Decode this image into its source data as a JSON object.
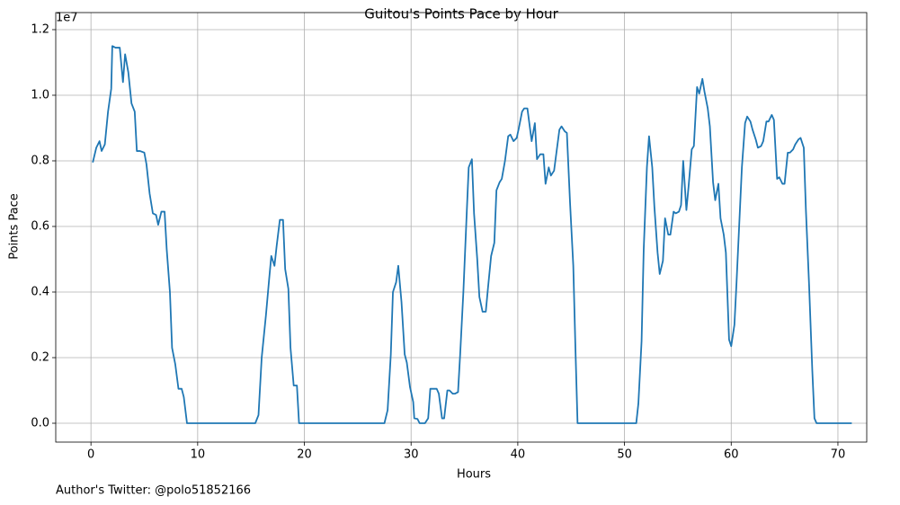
{
  "chart_data": {
    "type": "line",
    "title": "Guitou's Points Pace by Hour",
    "x_label": "Hours",
    "y_label": "Points Pace",
    "y_offset_text": "1e7",
    "footer": "Author's Twitter: @polo51852166",
    "color": "#1f77b4",
    "grid": true,
    "xlim": [
      -3.3,
      72.7
    ],
    "ylim": [
      -0.0575,
      1.252
    ],
    "xticks": [
      0,
      10,
      20,
      30,
      40,
      50,
      60,
      70
    ],
    "yticks": [
      {
        "value": 0,
        "label": "0.0"
      },
      0.2,
      0.4,
      0.6,
      0.8,
      {
        "value": 1,
        "label": "1.0"
      },
      1.2
    ],
    "x": [
      0.17,
      0.5,
      0.8,
      1.0,
      1.3,
      1.6,
      1.9,
      2.0,
      2.3,
      2.7,
      3.0,
      3.2,
      3.5,
      3.8,
      4.1,
      4.3,
      4.6,
      5.0,
      5.2,
      5.5,
      5.8,
      6.1,
      6.3,
      6.6,
      6.9,
      7.1,
      7.4,
      7.6,
      7.9,
      8.2,
      8.5,
      8.7,
      9.0,
      12,
      15.4,
      15.7,
      16.0,
      16.4,
      16.7,
      16.9,
      17.2,
      17.4,
      17.7,
      18.0,
      18.2,
      18.5,
      18.7,
      19.0,
      19.3,
      19.5,
      23,
      27.5,
      27.8,
      28.1,
      28.3,
      28.6,
      28.8,
      29.1,
      29.4,
      29.6,
      29.9,
      30.2,
      30.3,
      30.6,
      30.8,
      31.3,
      31.6,
      31.8,
      32.1,
      32.4,
      32.6,
      32.9,
      33.1,
      33.4,
      33.6,
      33.9,
      34.1,
      34.4,
      34.6,
      34.9,
      35.2,
      35.4,
      35.7,
      35.9,
      36.2,
      36.4,
      36.7,
      37.0,
      37.2,
      37.5,
      37.8,
      38.0,
      38.3,
      38.5,
      38.8,
      39.1,
      39.3,
      39.6,
      39.9,
      40.1,
      40.4,
      40.6,
      40.9,
      41.1,
      41.3,
      41.6,
      41.8,
      42.1,
      42.4,
      42.6,
      42.9,
      43.1,
      43.4,
      43.6,
      43.9,
      44.1,
      44.4,
      44.6,
      44.9,
      45.2,
      45.4,
      45.6,
      48,
      51.1,
      51.3,
      51.6,
      51.8,
      52.1,
      52.3,
      52.6,
      52.8,
      53.1,
      53.3,
      53.6,
      53.8,
      54.1,
      54.3,
      54.6,
      54.8,
      55.1,
      55.3,
      55.5,
      55.8,
      56.0,
      56.3,
      56.5,
      56.8,
      57.0,
      57.3,
      57.5,
      57.8,
      58.0,
      58.3,
      58.5,
      58.8,
      59.0,
      59.3,
      59.5,
      59.8,
      60.0,
      60.3,
      60.5,
      60.8,
      61.0,
      61.3,
      61.5,
      61.8,
      62.0,
      62.3,
      62.5,
      62.8,
      63.0,
      63.3,
      63.5,
      63.8,
      64.0,
      64.3,
      64.5,
      64.8,
      65.0,
      65.3,
      65.5,
      65.8,
      66.0,
      66.3,
      66.5,
      66.8,
      67.0,
      67.3,
      67.6,
      67.8,
      68.0,
      70,
      71.3
    ],
    "values": [
      0.795,
      0.84,
      0.86,
      0.83,
      0.85,
      0.95,
      1.02,
      1.15,
      1.145,
      1.145,
      1.04,
      1.125,
      1.07,
      0.975,
      0.95,
      0.83,
      0.83,
      0.825,
      0.79,
      0.7,
      0.64,
      0.635,
      0.605,
      0.645,
      0.645,
      0.53,
      0.4,
      0.23,
      0.18,
      0.105,
      0.105,
      0.08,
      0,
      0,
      0,
      0.025,
      0.2,
      0.33,
      0.44,
      0.51,
      0.48,
      0.54,
      0.62,
      0.62,
      0.47,
      0.41,
      0.23,
      0.115,
      0.115,
      0,
      0,
      0,
      0.04,
      0.21,
      0.4,
      0.43,
      0.48,
      0.37,
      0.21,
      0.185,
      0.11,
      0.065,
      0.015,
      0.013,
      0,
      0,
      0.015,
      0.105,
      0.105,
      0.105,
      0.09,
      0.015,
      0.015,
      0.1,
      0.1,
      0.09,
      0.09,
      0.095,
      0.21,
      0.4,
      0.63,
      0.78,
      0.805,
      0.64,
      0.5,
      0.385,
      0.34,
      0.34,
      0.41,
      0.51,
      0.55,
      0.71,
      0.735,
      0.745,
      0.8,
      0.875,
      0.88,
      0.86,
      0.87,
      0.9,
      0.95,
      0.96,
      0.96,
      0.91,
      0.86,
      0.915,
      0.805,
      0.82,
      0.82,
      0.73,
      0.78,
      0.755,
      0.77,
      0.82,
      0.895,
      0.905,
      0.89,
      0.885,
      0.67,
      0.48,
      0.23,
      0,
      0,
      0,
      0.06,
      0.25,
      0.53,
      0.78,
      0.875,
      0.78,
      0.66,
      0.52,
      0.455,
      0.495,
      0.625,
      0.575,
      0.575,
      0.645,
      0.64,
      0.645,
      0.665,
      0.8,
      0.65,
      0.72,
      0.835,
      0.845,
      1.025,
      1.005,
      1.05,
      1.01,
      0.96,
      0.905,
      0.735,
      0.68,
      0.73,
      0.625,
      0.575,
      0.52,
      0.255,
      0.235,
      0.3,
      0.43,
      0.64,
      0.78,
      0.915,
      0.935,
      0.92,
      0.895,
      0.865,
      0.84,
      0.845,
      0.86,
      0.92,
      0.92,
      0.94,
      0.925,
      0.745,
      0.75,
      0.73,
      0.73,
      0.825,
      0.825,
      0.835,
      0.85,
      0.865,
      0.87,
      0.84,
      0.65,
      0.42,
      0.16,
      0.015,
      0,
      0,
      0
    ]
  }
}
